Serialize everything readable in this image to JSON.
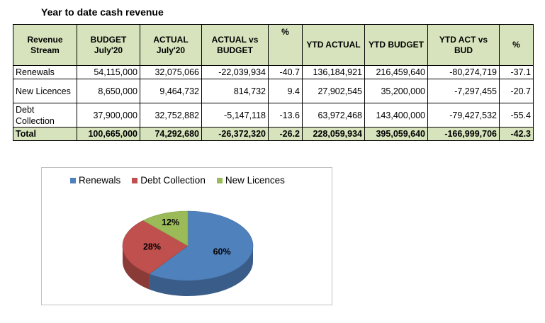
{
  "title": "Year to date cash revenue",
  "table": {
    "headers": [
      "Revenue Stream",
      "BUDGET July'20",
      "ACTUAL July'20",
      "ACTUAL vs BUDGET",
      "%",
      "YTD ACTUAL",
      "YTD BUDGET",
      "YTD ACT vs BUD",
      "%"
    ],
    "rows": [
      {
        "stream": "Renewals",
        "budget": "54,115,000",
        "actual": "32,075,066",
        "var": "-22,039,934",
        "pct": "-40.7",
        "ytd_actual": "136,184,921",
        "ytd_budget": "216,459,640",
        "ytd_var": "-80,274,719",
        "ytd_pct": "-37.1"
      },
      {
        "stream": "New Licences",
        "budget": "8,650,000",
        "actual": "9,464,732",
        "var": "814,732",
        "pct": "9.4",
        "ytd_actual": "27,902,545",
        "ytd_budget": "35,200,000",
        "ytd_var": "-7,297,455",
        "ytd_pct": "-20.7"
      },
      {
        "stream": "Debt Collection",
        "budget": "37,900,000",
        "actual": "32,752,882",
        "var": "-5,147,118",
        "pct": "-13.6",
        "ytd_actual": "63,972,468",
        "ytd_budget": "143,400,000",
        "ytd_var": "-79,427,532",
        "ytd_pct": "-55.4"
      }
    ],
    "total": {
      "stream": "Total",
      "budget": "100,665,000",
      "actual": "74,292,680",
      "var": "-26,372,320",
      "pct": "-26.2",
      "ytd_actual": "228,059,934",
      "ytd_budget": "395,059,640",
      "ytd_var": "-166,999,706",
      "ytd_pct": "-42.3"
    }
  },
  "chart_data": {
    "type": "pie",
    "style": "3d",
    "legend_position": "top",
    "slices": [
      {
        "name": "Renewals",
        "value": 60,
        "label": "60%",
        "color": "#4f81bd"
      },
      {
        "name": "Debt Collection",
        "value": 28,
        "label": "28%",
        "color": "#c0504d"
      },
      {
        "name": "New Licences",
        "value": 12,
        "label": "12%",
        "color": "#9bbb59"
      }
    ]
  },
  "colors": {
    "header_fill": "#d6e3bc"
  }
}
